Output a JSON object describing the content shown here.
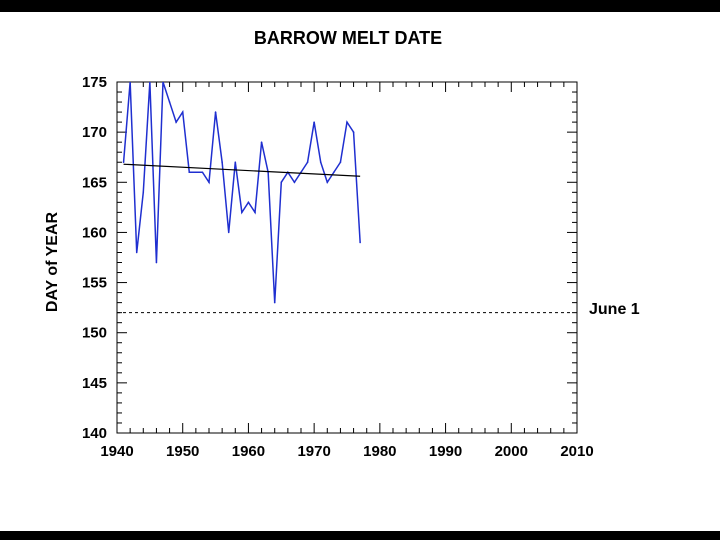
{
  "chart_data": {
    "type": "line",
    "title": "BARROW MELT DATE",
    "xlabel": "",
    "ylabel": "DAY of YEAR",
    "xlim": [
      1940,
      2010
    ],
    "ylim": [
      140,
      175
    ],
    "xticks": [
      "1940",
      "1950",
      "1960",
      "1970",
      "1980",
      "1990",
      "2000",
      "2010"
    ],
    "yticks": [
      "140",
      "145",
      "150",
      "155",
      "160",
      "165",
      "170",
      "175"
    ],
    "grid": false,
    "series": [
      {
        "color": "#1f2fd0",
        "x": [
          1941,
          1942,
          1943,
          1944,
          1945,
          1946,
          1947,
          1948,
          1949,
          1950,
          1951,
          1952,
          1953,
          1954,
          1955,
          1956,
          1957,
          1958,
          1959,
          1960,
          1961,
          1962,
          1963,
          1964,
          1965,
          1966,
          1967,
          1968,
          1969,
          1970,
          1971,
          1972,
          1973,
          1974,
          1975,
          1976,
          1977
        ],
        "y": [
          167,
          175,
          158,
          164,
          175,
          157,
          175,
          173,
          171,
          172,
          166,
          166,
          166,
          165,
          172,
          167,
          160,
          167,
          162,
          163,
          162,
          169,
          166,
          153,
          165,
          166,
          165,
          166,
          167,
          171,
          167,
          165,
          166,
          167,
          171,
          170,
          159
        ]
      }
    ],
    "trend_line": {
      "color": "#000000",
      "x": [
        1941,
        1977
      ],
      "y": [
        166.8,
        165.6
      ]
    },
    "reference_line": {
      "y": 152,
      "style": "dashed",
      "label": "June 1"
    }
  }
}
